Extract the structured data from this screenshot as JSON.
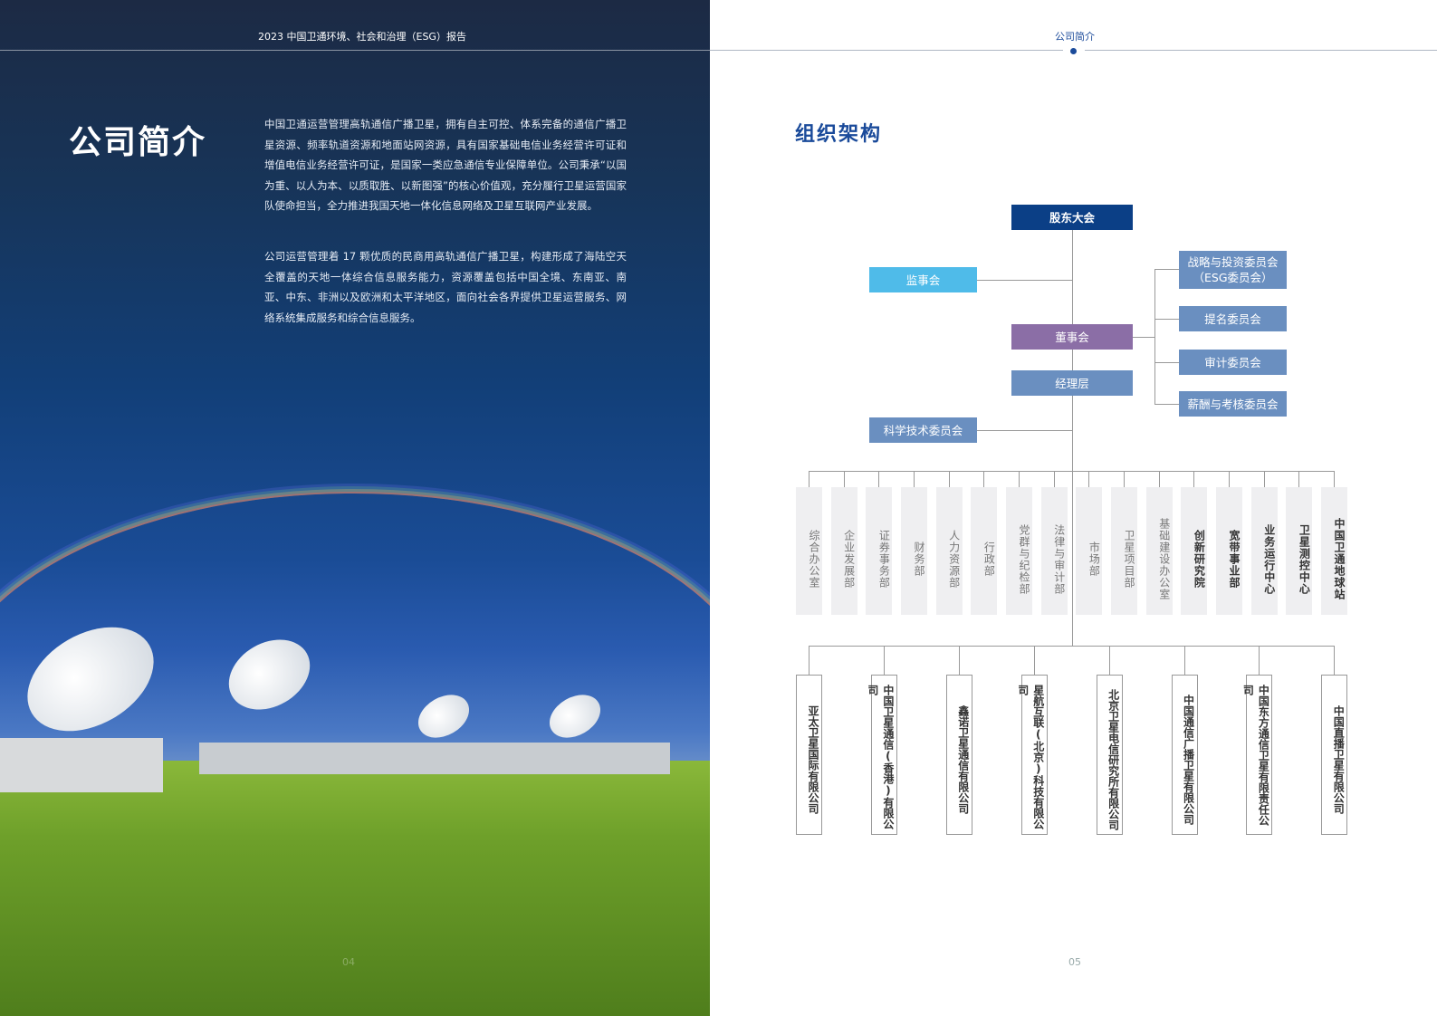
{
  "left_page": {
    "header": "2023 中国卫通环境、社会和治理（ESG）报告",
    "title": "公司简介",
    "paragraphs": [
      "中国卫通运营管理高轨通信广播卫星，拥有自主可控、体系完备的通信广播卫星资源、频率轨道资源和地面站网资源，具有国家基础电信业务经营许可证和增值电信业务经营许可证，是国家一类应急通信专业保障单位。公司秉承“以国为重、以人为本、以质取胜、以新图强”的核心价值观，充分履行卫星运营国家队使命担当，全力推进我国天地一体化信息网络及卫星互联网产业发展。",
      "公司运营管理着 17 颗优质的民商用高轨通信广播卫星，构建形成了海陆空天全覆盖的天地一体综合信息服务能力，资源覆盖包括中国全境、东南亚、南亚、中东、非洲以及欧洲和太平洋地区，面向社会各界提供卫星运营服务、网络系统集成服务和综合信息服务。"
    ],
    "page_number": "04"
  },
  "right_page": {
    "header": "公司简介",
    "title": "组织架构",
    "page_number": "05",
    "org": {
      "shareholders": "股东大会",
      "supervisory": "监事会",
      "board": "董事会",
      "management": "经理层",
      "sci_committee": "科学技术委员会",
      "committees": [
        "战略与投资委员会（ESG委员会）",
        "提名委员会",
        "审计委员会",
        "薪酬与考核委员会"
      ],
      "departments": [
        "综合办公室",
        "企业发展部",
        "证券事务部",
        "财务部",
        "人力资源部",
        "行政部",
        "党群与纪检部",
        "法律与审计部",
        "市场部",
        "卫星项目部",
        "基础建设办公室",
        "创新研究院",
        "宽带事业部",
        "业务运行中心",
        "卫星测控中心",
        "中国卫通地球站"
      ],
      "subsidiaries": [
        "亚太卫星国际有限公司",
        "中国卫星通信(香港)有限公司",
        "鑫诺卫星通信有限公司",
        "星航互联(北京)科技有限公司",
        "北京卫星电信研究所有限公司",
        "中国通信广播卫星有限公司",
        "中国东方通信卫星有限责任公司",
        "中国直播卫星有限公司"
      ]
    },
    "colors": {
      "dark_blue": "#0b3f86",
      "light_blue": "#4fbbe9",
      "purple": "#8b6ea6",
      "steel_blue": "#6a8fc0"
    }
  }
}
